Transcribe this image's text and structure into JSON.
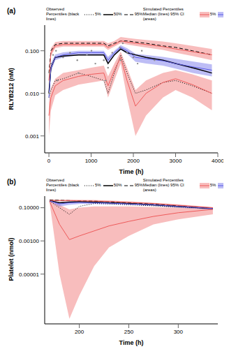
{
  "chart_data": [
    {
      "type": "line",
      "title": "(a)",
      "x_label": "Time (h)",
      "y_label": "RLYB212 (nM)",
      "log": "y",
      "grid": false,
      "xlim": [
        -100,
        4000
      ],
      "xticks": [
        0,
        1000,
        2000,
        3000,
        4000
      ],
      "ylim": [
        0.0004,
        0.4
      ],
      "yticks": [
        0.001,
        {
          "value": 0.01,
          "label": "0.010"
        },
        {
          "value": 0.1,
          "label": "0.100"
        }
      ],
      "x": [
        0,
        48,
        150,
        336,
        700,
        1000,
        1300,
        1400,
        1550,
        1700,
        1850,
        2050,
        2300,
        2700,
        3000,
        3400,
        3860
      ],
      "series": [
        {
          "name": "5%",
          "group": "Observed Percentiles (black lines)",
          "type": "line",
          "color": "#000000",
          "line_style": "dotted",
          "values": [
            0.008,
            0.012,
            0.02,
            0.022,
            0.03,
            0.025,
            0.02,
            0.01,
            0.03,
            0.08,
            0.03,
            0.01,
            0.012,
            0.018,
            0.02,
            0.015,
            0.01
          ]
        },
        {
          "name": "50%",
          "group": "Observed Percentiles (black lines)",
          "type": "line",
          "color": "#000000",
          "line_style": "solid",
          "values": [
            0.01,
            0.04,
            0.07,
            0.075,
            0.08,
            0.08,
            0.08,
            0.05,
            0.08,
            0.11,
            0.09,
            0.08,
            0.07,
            0.06,
            0.05,
            0.04,
            0.03
          ]
        },
        {
          "name": "95%",
          "group": "Observed Percentiles (black lines)",
          "type": "line",
          "color": "#000000",
          "line_style": "dashed",
          "values": [
            0.03,
            0.1,
            0.14,
            0.15,
            0.15,
            0.15,
            0.15,
            0.13,
            0.15,
            0.17,
            0.17,
            0.16,
            0.15,
            0.13,
            0.12,
            0.1,
            0.08
          ]
        },
        {
          "name": "5%",
          "group": "Simulated Percentiles Median (lines) 95% CI (areas)",
          "type": "band",
          "color": "#ee5a5a",
          "line_style": "solid",
          "values": [
            0.003,
            0.008,
            0.015,
            0.02,
            0.025,
            0.028,
            0.03,
            0.015,
            0.035,
            0.07,
            0.02,
            0.005,
            0.01,
            0.018,
            0.022,
            0.016,
            0.01
          ],
          "ci_lower": [
            0.001,
            0.004,
            0.009,
            0.012,
            0.016,
            0.018,
            0.02,
            0.008,
            0.02,
            0.05,
            0.008,
            0.001,
            0.003,
            0.008,
            0.012,
            0.008,
            0.004
          ],
          "ci_upper": [
            0.006,
            0.013,
            0.022,
            0.03,
            0.035,
            0.04,
            0.045,
            0.025,
            0.05,
            0.095,
            0.04,
            0.012,
            0.02,
            0.03,
            0.035,
            0.028,
            0.02
          ]
        },
        {
          "name": "50%",
          "group": "Simulated Percentiles Median (lines) 95% CI (areas)",
          "type": "band",
          "color": "#5a5ae6",
          "line_style": "solid",
          "values": [
            0.008,
            0.04,
            0.07,
            0.08,
            0.09,
            0.09,
            0.09,
            0.06,
            0.09,
            0.12,
            0.1,
            0.07,
            0.065,
            0.058,
            0.05,
            0.042,
            0.035
          ],
          "ci_lower": [
            0.006,
            0.032,
            0.06,
            0.07,
            0.078,
            0.078,
            0.078,
            0.05,
            0.078,
            0.105,
            0.085,
            0.055,
            0.05,
            0.045,
            0.038,
            0.03,
            0.025
          ],
          "ci_upper": [
            0.011,
            0.05,
            0.082,
            0.092,
            0.1,
            0.1,
            0.1,
            0.072,
            0.1,
            0.135,
            0.115,
            0.085,
            0.08,
            0.072,
            0.065,
            0.056,
            0.048
          ]
        },
        {
          "name": "95%",
          "group": "Simulated Percentiles Median (lines) 95% CI (areas)",
          "type": "band",
          "color": "#ee5a5a",
          "line_style": "solid",
          "values": [
            0.02,
            0.09,
            0.13,
            0.14,
            0.14,
            0.14,
            0.14,
            0.12,
            0.14,
            0.17,
            0.16,
            0.15,
            0.14,
            0.125,
            0.11,
            0.095,
            0.08
          ],
          "ci_lower": [
            0.015,
            0.075,
            0.115,
            0.125,
            0.125,
            0.125,
            0.125,
            0.105,
            0.125,
            0.15,
            0.14,
            0.13,
            0.12,
            0.105,
            0.09,
            0.075,
            0.06
          ],
          "ci_upper": [
            0.03,
            0.115,
            0.16,
            0.17,
            0.17,
            0.17,
            0.17,
            0.15,
            0.17,
            0.21,
            0.2,
            0.19,
            0.18,
            0.165,
            0.15,
            0.13,
            0.11
          ]
        }
      ],
      "points": {
        "color": "#8c8c8c",
        "x": [
          10,
          24,
          48,
          100,
          168,
          200,
          336,
          500,
          672,
          700,
          900,
          1008,
          1100,
          1300,
          1344,
          1400,
          1500,
          1680,
          1700,
          1750,
          1850,
          2000,
          2100,
          2200,
          2500
        ],
        "values": [
          0.01,
          0.03,
          0.05,
          0.08,
          0.1,
          0.02,
          0.07,
          0.09,
          0.06,
          0.03,
          0.08,
          0.1,
          0.05,
          0.06,
          0.02,
          0.04,
          0.09,
          0.12,
          0.06,
          0.15,
          0.09,
          0.07,
          0.05,
          0.1,
          0.06
        ]
      }
    },
    {
      "type": "line",
      "title": "(b)",
      "x_label": "Time (h)",
      "y_label": "Platelet (nmol)",
      "log": "y",
      "grid": false,
      "xlim": [
        165,
        340
      ],
      "xticks": [
        200,
        250,
        300
      ],
      "ylim": [
        1e-08,
        0.5
      ],
      "yticks": [
        {
          "value": 1e-05,
          "label": "0.00001"
        },
        {
          "value": 0.001,
          "label": "0.00100"
        },
        {
          "value": 0.1,
          "label": "0.10000"
        }
      ],
      "x": [
        170,
        180,
        190,
        200,
        215,
        230,
        250,
        275,
        300,
        335
      ],
      "series": [
        {
          "name": "5%",
          "group": "Observed Percentiles (black lines)",
          "type": "line",
          "color": "#000000",
          "line_style": "dotted",
          "values": [
            0.25,
            0.1,
            0.04,
            0.12,
            0.18,
            0.17,
            0.15,
            0.13,
            0.11,
            0.09
          ]
        },
        {
          "name": "50%",
          "group": "Observed Percentiles (black lines)",
          "type": "line",
          "color": "#000000",
          "line_style": "solid",
          "values": [
            0.27,
            0.2,
            0.22,
            0.23,
            0.22,
            0.2,
            0.18,
            0.15,
            0.12,
            0.09
          ]
        },
        {
          "name": "95%",
          "group": "Observed Percentiles (black lines)",
          "type": "line",
          "color": "#000000",
          "line_style": "dashed",
          "values": [
            0.3,
            0.28,
            0.27,
            0.26,
            0.25,
            0.23,
            0.2,
            0.17,
            0.13,
            0.09
          ]
        },
        {
          "name": "5%",
          "group": "Simulated Percentiles Median (lines) 95% CI (areas)",
          "type": "band",
          "color": "#ee5a5a",
          "line_style": "solid",
          "values": [
            0.24,
            0.01,
            0.0012,
            0.002,
            0.004,
            0.008,
            0.015,
            0.03,
            0.05,
            0.08
          ],
          "ci_lower": [
            0.2,
            1e-05,
            2e-08,
            5e-07,
            3e-05,
            0.0004,
            0.002,
            0.01,
            0.02,
            0.04
          ],
          "ci_upper": [
            0.27,
            0.15,
            0.08,
            0.1,
            0.12,
            0.12,
            0.12,
            0.11,
            0.1,
            0.09
          ]
        },
        {
          "name": "50%",
          "group": "Simulated Percentiles Median (lines) 95% CI (areas)",
          "type": "band",
          "color": "#5a5ae6",
          "line_style": "solid",
          "values": [
            0.26,
            0.17,
            0.2,
            0.21,
            0.2,
            0.19,
            0.17,
            0.15,
            0.12,
            0.09
          ],
          "ci_lower": [
            0.24,
            0.12,
            0.15,
            0.17,
            0.17,
            0.16,
            0.15,
            0.13,
            0.1,
            0.075
          ],
          "ci_upper": [
            0.28,
            0.22,
            0.24,
            0.24,
            0.23,
            0.22,
            0.2,
            0.17,
            0.14,
            0.1
          ]
        },
        {
          "name": "95%",
          "group": "Simulated Percentiles Median (lines) 95% CI (areas)",
          "type": "band",
          "color": "#ee5a5a",
          "line_style": "solid",
          "values": [
            0.28,
            0.27,
            0.27,
            0.26,
            0.25,
            0.24,
            0.21,
            0.18,
            0.14,
            0.1
          ],
          "ci_lower": [
            0.26,
            0.25,
            0.25,
            0.24,
            0.23,
            0.22,
            0.19,
            0.16,
            0.12,
            0.085
          ],
          "ci_upper": [
            0.31,
            0.31,
            0.31,
            0.3,
            0.29,
            0.27,
            0.24,
            0.2,
            0.16,
            0.11
          ]
        }
      ]
    }
  ]
}
